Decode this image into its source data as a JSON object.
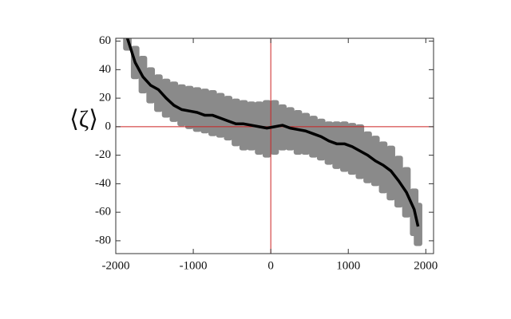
{
  "chart_data": {
    "type": "line",
    "y_label": "⟨ζ⟩",
    "x": [
      -1850,
      -1750,
      -1650,
      -1550,
      -1450,
      -1350,
      -1250,
      -1150,
      -1050,
      -950,
      -850,
      -750,
      -650,
      -550,
      -450,
      -350,
      -250,
      -150,
      -50,
      50,
      150,
      250,
      350,
      450,
      550,
      650,
      750,
      850,
      950,
      1050,
      1150,
      1250,
      1350,
      1450,
      1550,
      1650,
      1750,
      1850,
      1900
    ],
    "series": [
      {
        "color": "#000000",
        "values": [
          62,
          45,
          35,
          29,
          26,
          20,
          15,
          12,
          11,
          10,
          8,
          8,
          6,
          4,
          2,
          2,
          1,
          0,
          -1,
          0,
          1,
          -1,
          -2,
          -3,
          -5,
          -7,
          -10,
          -12,
          -12,
          -14,
          -17,
          -20,
          -24,
          -27,
          -31,
          -38,
          -46,
          -58,
          -70
        ]
      }
    ],
    "band": {
      "color": "#8a8a8a",
      "upper": [
        62,
        55,
        48,
        40,
        35,
        32,
        30,
        28,
        27,
        26,
        25,
        24,
        22,
        20,
        18,
        17,
        16,
        16,
        17,
        17,
        14,
        12,
        10,
        8,
        6,
        4,
        2,
        2,
        2,
        1,
        0,
        -5,
        -8,
        -12,
        -15,
        -22,
        -30,
        -45,
        -55
      ],
      "lower": [
        55,
        35,
        25,
        18,
        12,
        8,
        5,
        2,
        0,
        -2,
        -3,
        -5,
        -6,
        -8,
        -12,
        -15,
        -15,
        -18,
        -20,
        -18,
        -15,
        -15,
        -18,
        -18,
        -20,
        -22,
        -25,
        -28,
        -30,
        -32,
        -35,
        -38,
        -40,
        -45,
        -50,
        -55,
        -62,
        -75,
        -82
      ]
    },
    "reference_lines": {
      "x": 0,
      "y": 0,
      "color": "#cc2222"
    },
    "xlim": [
      -2000,
      2100
    ],
    "ylim": [
      -89,
      62
    ],
    "xticks": [
      -2000,
      -1000,
      0,
      1000,
      2000
    ],
    "yticks": [
      -80,
      -60,
      -40,
      -20,
      0,
      20,
      40,
      60
    ],
    "grid": false
  }
}
